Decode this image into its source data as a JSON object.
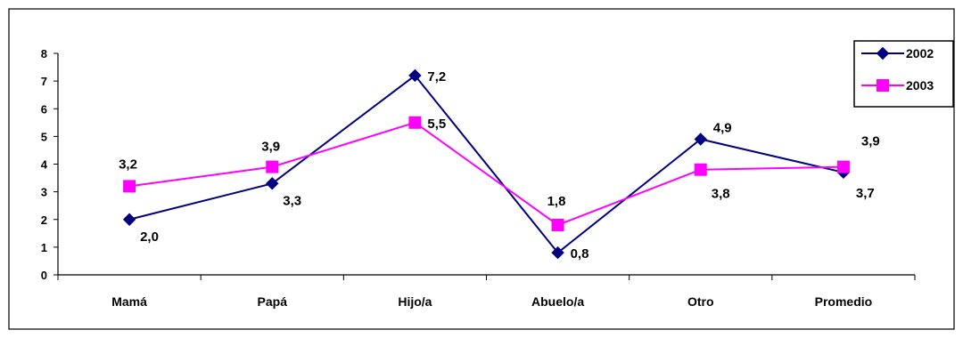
{
  "chart_data": {
    "type": "line",
    "categories": [
      "Mamá",
      "Papá",
      "Hijo/a",
      "Abuelo/a",
      "Otro",
      "Promedio"
    ],
    "y_ticks": [
      "0",
      "1",
      "2",
      "3",
      "4",
      "5",
      "6",
      "7",
      "8"
    ],
    "ylim": [
      0,
      8
    ],
    "grid": false,
    "legend_position": "top-right",
    "series": [
      {
        "name": "2002",
        "color": "#000080",
        "marker": "diamond",
        "values": [
          2.0,
          3.3,
          7.2,
          0.8,
          4.9,
          3.7
        ],
        "labels": [
          "2,0",
          "3,3",
          "7,2",
          "0,8",
          "4,9",
          "3,7"
        ]
      },
      {
        "name": "2003",
        "color": "#ff00ff",
        "marker": "square",
        "values": [
          3.2,
          3.9,
          5.5,
          1.8,
          3.8,
          3.9
        ],
        "labels": [
          "3,2",
          "3,9",
          "5,5",
          "1,8",
          "3,8",
          "3,9"
        ]
      }
    ]
  }
}
